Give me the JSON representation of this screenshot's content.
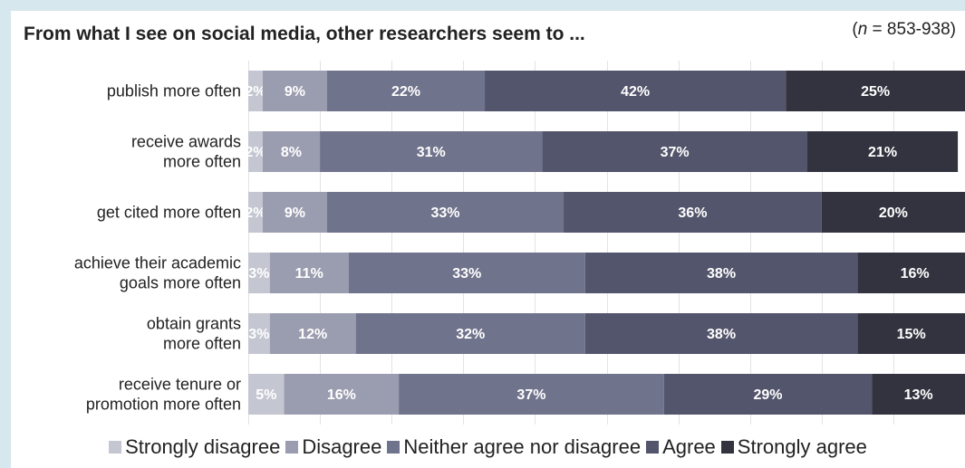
{
  "chart_data": {
    "type": "bar",
    "stacked": true,
    "orientation": "horizontal",
    "title": "From what I see on social media, other researchers seem to ...",
    "note": {
      "n_symbol": "n",
      "text": " = 853-938)"
    },
    "xlim": [
      0,
      100
    ],
    "grid": true,
    "legend_position": "bottom",
    "categories": [
      [
        "publish more often"
      ],
      [
        "receive awards",
        "more often"
      ],
      [
        "get cited more often"
      ],
      [
        "achieve their academic",
        "goals more often"
      ],
      [
        "obtain grants",
        "more often"
      ],
      [
        "receive tenure or",
        "promotion more often"
      ]
    ],
    "series": [
      {
        "name": "Strongly disagree",
        "color": "#c4c6d1",
        "label_color": "#ffffff",
        "values": [
          2,
          2,
          2,
          3,
          3,
          5
        ]
      },
      {
        "name": "Disagree",
        "color": "#9a9daf",
        "label_color": "#ffffff",
        "values": [
          9,
          8,
          9,
          11,
          12,
          16
        ]
      },
      {
        "name": "Neither agree nor disagree",
        "color": "#70738c",
        "label_color": "#ffffff",
        "values": [
          22,
          31,
          33,
          33,
          32,
          37
        ]
      },
      {
        "name": "Agree",
        "color": "#52556b",
        "label_color": "#ffffff",
        "values": [
          42,
          37,
          36,
          38,
          38,
          29
        ]
      },
      {
        "name": "Strongly agree",
        "color": "#32333f",
        "label_color": "#ffffff",
        "values": [
          25,
          21,
          20,
          16,
          15,
          13
        ]
      }
    ]
  }
}
